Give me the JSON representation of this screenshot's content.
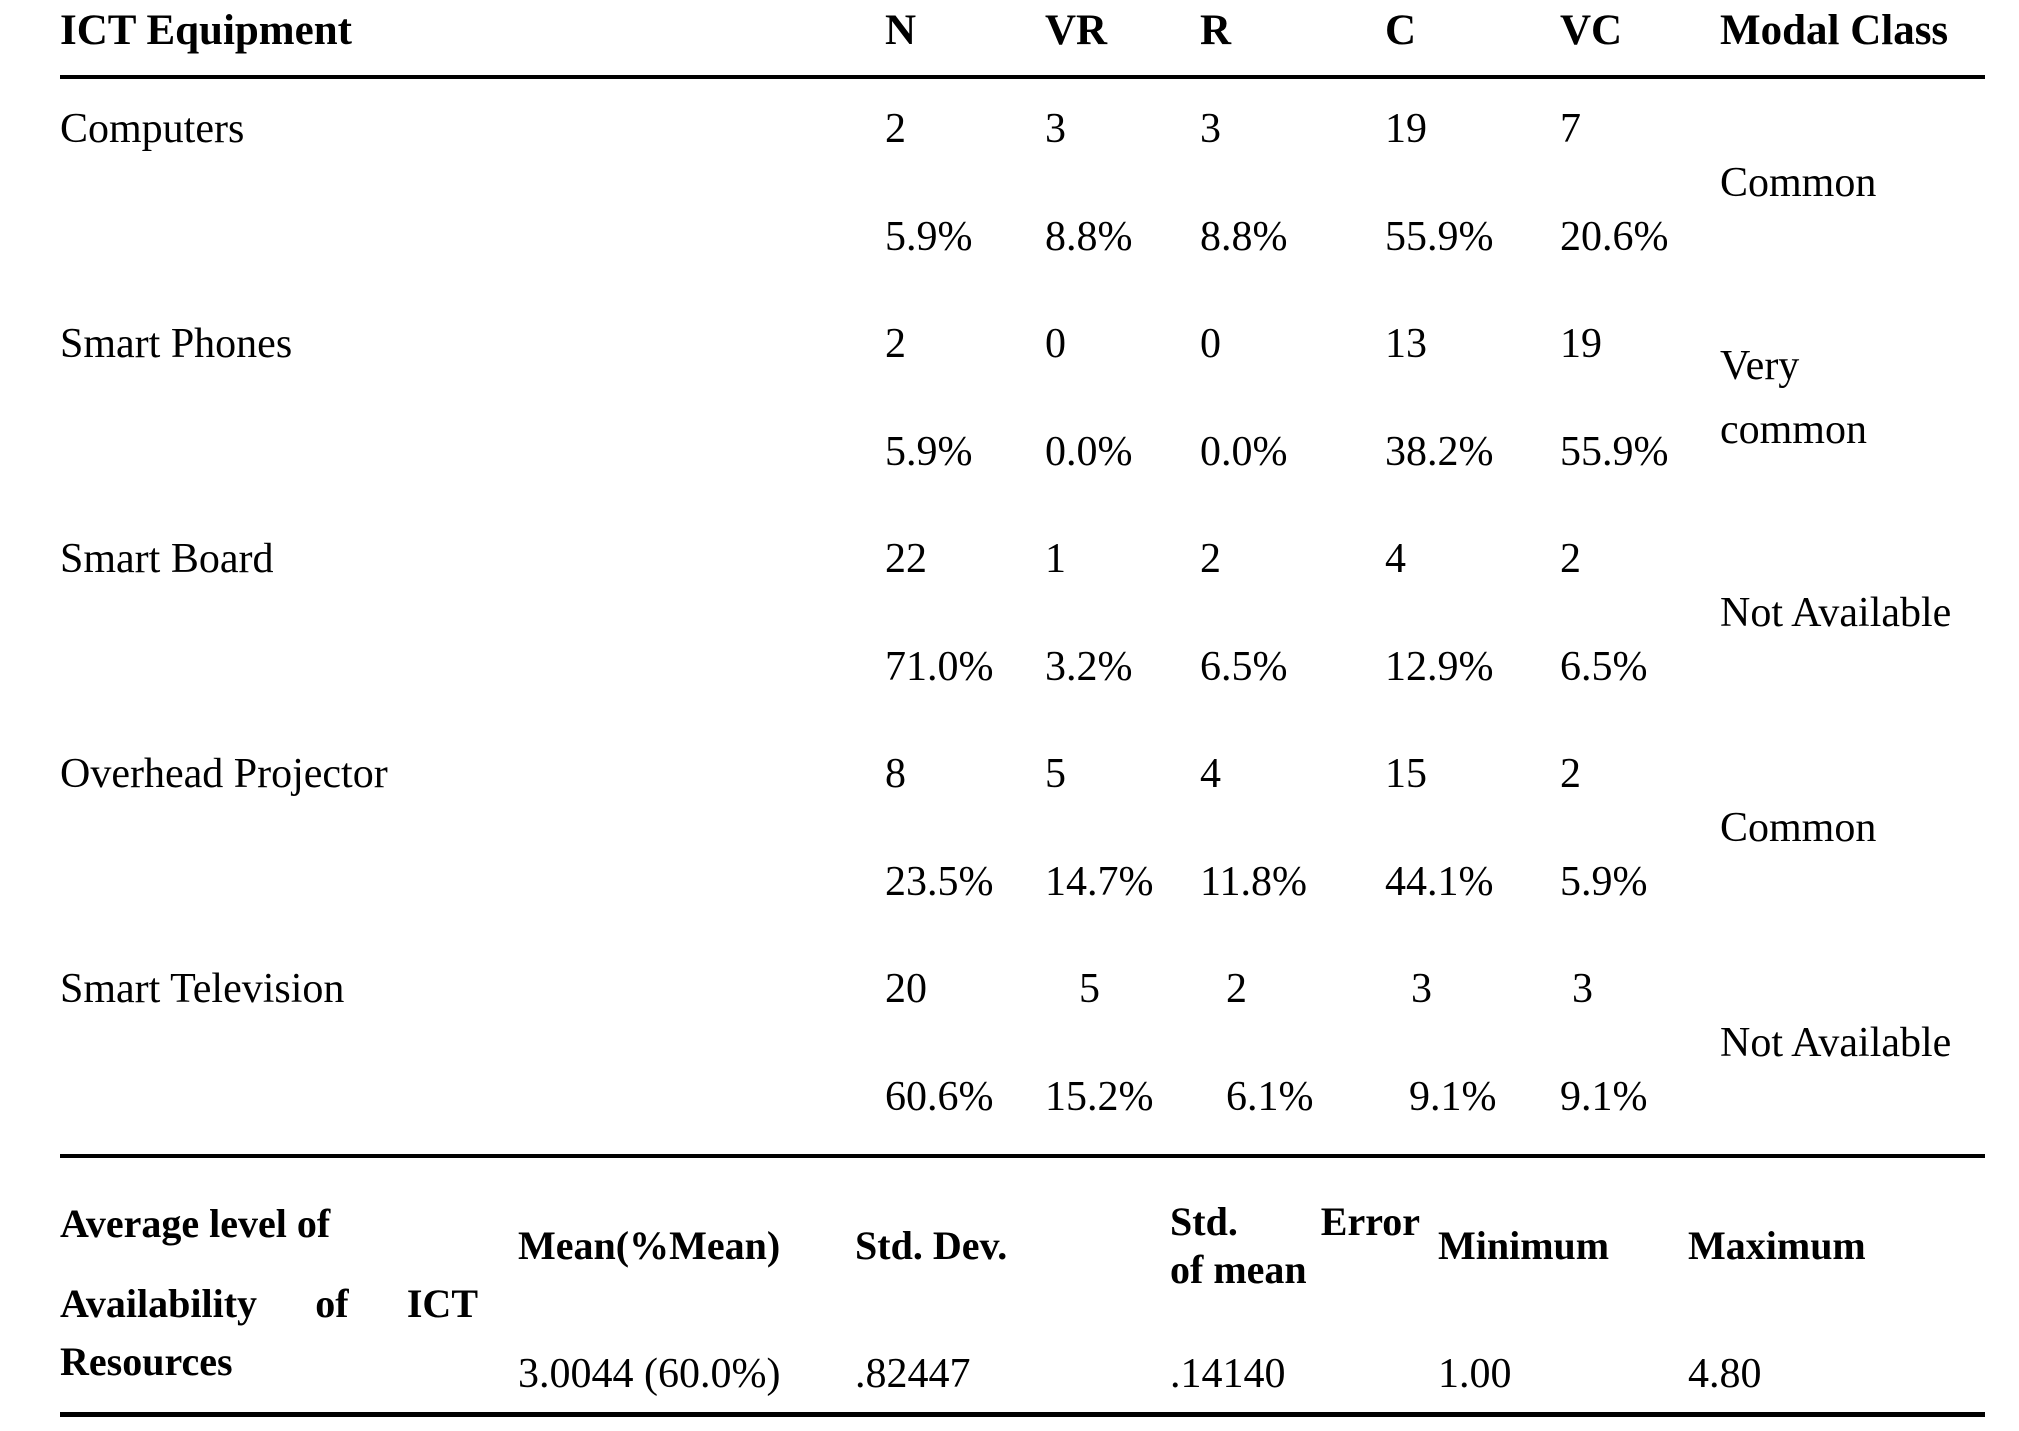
{
  "table": {
    "headers": {
      "equipment": "ICT Equipment",
      "n": "N",
      "vr": "VR",
      "r": "R",
      "c": "C",
      "vc": "VC",
      "modal": "Modal Class"
    },
    "rows": [
      {
        "equipment": "Computers",
        "counts": [
          "2",
          "3",
          "3",
          "19",
          "7"
        ],
        "percents": [
          "5.9%",
          "8.8%",
          "8.8%",
          "55.9%",
          "20.6%"
        ],
        "modal": "Common"
      },
      {
        "equipment": "Smart Phones",
        "counts": [
          "2",
          "0",
          "0",
          "13",
          "19"
        ],
        "percents": [
          "5.9%",
          "0.0%",
          "0.0%",
          "38.2%",
          "55.9%"
        ],
        "modal": "Very common"
      },
      {
        "equipment": "Smart Board",
        "counts": [
          "22",
          "1",
          "2",
          "4",
          "2"
        ],
        "percents": [
          "71.0%",
          "3.2%",
          "6.5%",
          "12.9%",
          "6.5%"
        ],
        "modal": "Not Available"
      },
      {
        "equipment": "Overhead Projector",
        "counts": [
          "8",
          "5",
          "4",
          "15",
          "2"
        ],
        "percents": [
          "23.5%",
          "14.7%",
          "11.8%",
          "44.1%",
          "5.9%"
        ],
        "modal": "Common"
      },
      {
        "equipment": "Smart Television",
        "counts": [
          "20",
          "5",
          "2",
          "3",
          "3"
        ],
        "percents": [
          "60.6%",
          "15.2%",
          "6.1%",
          "9.1%",
          "9.1%"
        ],
        "modal": "Not Available"
      }
    ]
  },
  "summary": {
    "label_line1": "Average level of",
    "label_line2_words": [
      "Availability",
      "of",
      "ICT"
    ],
    "label_line3": "Resources",
    "headers": {
      "mean": "Mean(%Mean)",
      "std_dev": "Std. Dev.",
      "std_error_words": [
        "Std.",
        "Error"
      ],
      "std_error_line2": "of mean",
      "minimum": "Minimum",
      "maximum": "Maximum"
    },
    "values": {
      "mean": "3.0044 (60.0%)",
      "std_dev": ".82447",
      "std_error": ".14140",
      "minimum": "1.00",
      "maximum": "4.80"
    }
  }
}
